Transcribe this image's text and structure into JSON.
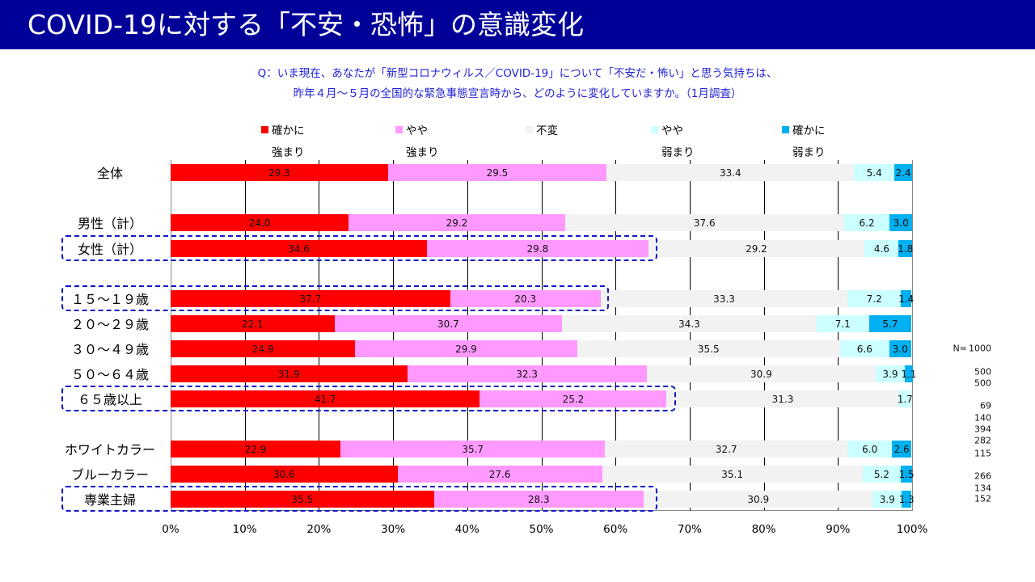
{
  "title": "COVID-19に対する「不安・恐怖」の意識変化",
  "question": [
    "Q：いま現在、あなたが「新型コロナウィルス／COVID-19」について「不安だ・怖い」と思う気持ちは、",
    "昨年４月～５月の全国的な緊急事態宣言時から、どのように変化していますか。（1月調査）"
  ],
  "n_prefix": "N=",
  "n_values": [
    "1000",
    "500",
    "500",
    "69",
    "140",
    "394",
    "282",
    "115",
    "266",
    "134",
    "152"
  ],
  "chart_data": {
    "type": "bar",
    "stacked": true,
    "orientation": "horizontal",
    "xlim": [
      0,
      100
    ],
    "xticks": [
      "0%",
      "10%",
      "20%",
      "30%",
      "40%",
      "50%",
      "60%",
      "70%",
      "80%",
      "90%",
      "100%"
    ],
    "series": [
      {
        "name": [
          "確かに",
          "強まり"
        ],
        "color": "#ff0000"
      },
      {
        "name": [
          "やや",
          "強まり"
        ],
        "color": "#ff99ff"
      },
      {
        "name": [
          "不変",
          ""
        ],
        "color": "#f2f2f2"
      },
      {
        "name": [
          "やや",
          "弱まり"
        ],
        "color": "#ccffff"
      },
      {
        "name": [
          "確かに",
          "弱まり"
        ],
        "color": "#00b0f0"
      }
    ],
    "categories": [
      "全体",
      "男性（計）",
      "女性（計）",
      "１５～１９歳",
      "２０～２９歳",
      "３０～４９歳",
      "５０～６４歳",
      "６５歳以上",
      "ホワイトカラー",
      "ブルーカラー",
      "専業主婦"
    ],
    "values": [
      [
        29.3,
        29.5,
        33.4,
        5.4,
        2.4
      ],
      [
        24.0,
        29.2,
        37.6,
        6.2,
        3.0
      ],
      [
        34.6,
        29.8,
        29.2,
        4.6,
        1.8
      ],
      [
        37.7,
        20.3,
        33.3,
        7.2,
        1.4
      ],
      [
        22.1,
        30.7,
        34.3,
        7.1,
        5.7
      ],
      [
        24.9,
        29.9,
        35.5,
        6.6,
        3.0
      ],
      [
        31.9,
        32.3,
        30.9,
        3.9,
        1.1
      ],
      [
        41.7,
        25.2,
        31.3,
        1.7,
        0
      ],
      [
        22.9,
        35.7,
        32.7,
        6.0,
        2.6
      ],
      [
        30.6,
        27.6,
        35.1,
        5.2,
        1.5
      ],
      [
        35.5,
        28.3,
        30.9,
        3.9,
        1.3
      ]
    ],
    "highlighted": [
      "女性（計）",
      "１５～１９歳",
      "６５歳以上",
      "専業主婦"
    ]
  }
}
